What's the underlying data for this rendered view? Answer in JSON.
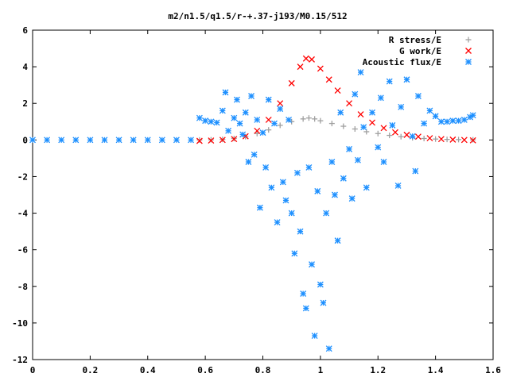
{
  "chart_data": {
    "type": "scatter",
    "title": "m2/n1.5/q1.5/r-+.37-j193/M0.15/512",
    "xlabel": "",
    "ylabel": "",
    "xlim": [
      0,
      1.6
    ],
    "ylim": [
      -12,
      6
    ],
    "x_ticks": [
      "0",
      "0.2",
      "0.4",
      "0.6",
      "0.8",
      "1",
      "1.2",
      "1.4",
      "1.6"
    ],
    "y_ticks": [
      "6",
      "4",
      "2",
      "0",
      "-2",
      "-4",
      "-6",
      "-8",
      "-10",
      "-12"
    ],
    "grid": false,
    "legend_position": "top-right",
    "series": [
      {
        "name": "R stress/E",
        "marker": "+",
        "color": "#a0a0a0",
        "points": [
          [
            0.58,
            0.0
          ],
          [
            0.62,
            0.01
          ],
          [
            0.66,
            0.03
          ],
          [
            0.7,
            0.08
          ],
          [
            0.74,
            0.18
          ],
          [
            0.78,
            0.35
          ],
          [
            0.82,
            0.55
          ],
          [
            0.86,
            0.8
          ],
          [
            0.9,
            1.0
          ],
          [
            0.94,
            1.15
          ],
          [
            0.96,
            1.2
          ],
          [
            0.98,
            1.15
          ],
          [
            1.0,
            1.05
          ],
          [
            1.04,
            0.9
          ],
          [
            1.08,
            0.75
          ],
          [
            1.12,
            0.6
          ],
          [
            1.16,
            0.45
          ],
          [
            1.2,
            0.35
          ],
          [
            1.24,
            0.25
          ],
          [
            1.28,
            0.18
          ],
          [
            1.32,
            0.12
          ],
          [
            1.36,
            0.08
          ],
          [
            1.4,
            0.05
          ],
          [
            1.44,
            0.03
          ],
          [
            1.48,
            0.02
          ],
          [
            1.53,
            0.01
          ]
        ]
      },
      {
        "name": "G work/E",
        "marker": "x",
        "color": "#ff0000",
        "points": [
          [
            0.58,
            -0.05
          ],
          [
            0.62,
            -0.03
          ],
          [
            0.66,
            0.0
          ],
          [
            0.7,
            0.05
          ],
          [
            0.74,
            0.2
          ],
          [
            0.78,
            0.5
          ],
          [
            0.82,
            1.1
          ],
          [
            0.86,
            2.0
          ],
          [
            0.9,
            3.1
          ],
          [
            0.93,
            4.0
          ],
          [
            0.95,
            4.45
          ],
          [
            0.97,
            4.4
          ],
          [
            1.0,
            3.9
          ],
          [
            1.03,
            3.3
          ],
          [
            1.06,
            2.7
          ],
          [
            1.1,
            2.0
          ],
          [
            1.14,
            1.4
          ],
          [
            1.18,
            0.95
          ],
          [
            1.22,
            0.65
          ],
          [
            1.26,
            0.42
          ],
          [
            1.3,
            0.28
          ],
          [
            1.34,
            0.18
          ],
          [
            1.38,
            0.1
          ],
          [
            1.42,
            0.05
          ],
          [
            1.46,
            0.02
          ],
          [
            1.5,
            0.0
          ],
          [
            1.53,
            -0.02
          ]
        ]
      },
      {
        "name": "Acoustic flux/E",
        "marker": "*",
        "color": "#1e90ff",
        "points": [
          [
            0.0,
            0.0
          ],
          [
            0.05,
            0.0
          ],
          [
            0.1,
            0.0
          ],
          [
            0.15,
            0.0
          ],
          [
            0.2,
            0.0
          ],
          [
            0.25,
            0.0
          ],
          [
            0.3,
            0.0
          ],
          [
            0.35,
            0.0
          ],
          [
            0.4,
            0.0
          ],
          [
            0.45,
            0.0
          ],
          [
            0.5,
            0.0
          ],
          [
            0.55,
            0.0
          ],
          [
            0.58,
            1.2
          ],
          [
            0.6,
            1.05
          ],
          [
            0.62,
            1.0
          ],
          [
            0.64,
            0.95
          ],
          [
            0.66,
            1.6
          ],
          [
            0.67,
            2.6
          ],
          [
            0.68,
            0.5
          ],
          [
            0.7,
            1.2
          ],
          [
            0.71,
            2.2
          ],
          [
            0.72,
            0.9
          ],
          [
            0.73,
            0.3
          ],
          [
            0.74,
            1.5
          ],
          [
            0.75,
            -1.2
          ],
          [
            0.76,
            2.4
          ],
          [
            0.77,
            -0.8
          ],
          [
            0.78,
            1.1
          ],
          [
            0.79,
            -3.7
          ],
          [
            0.8,
            0.4
          ],
          [
            0.81,
            -1.5
          ],
          [
            0.82,
            2.2
          ],
          [
            0.83,
            -2.6
          ],
          [
            0.84,
            0.9
          ],
          [
            0.85,
            -4.5
          ],
          [
            0.86,
            1.7
          ],
          [
            0.87,
            -2.3
          ],
          [
            0.88,
            -3.3
          ],
          [
            0.89,
            1.1
          ],
          [
            0.9,
            -4.0
          ],
          [
            0.91,
            -6.2
          ],
          [
            0.92,
            -1.8
          ],
          [
            0.93,
            -5.0
          ],
          [
            0.94,
            -8.4
          ],
          [
            0.95,
            -9.2
          ],
          [
            0.96,
            -1.5
          ],
          [
            0.97,
            -6.8
          ],
          [
            0.98,
            -10.7
          ],
          [
            0.99,
            -2.8
          ],
          [
            1.0,
            -7.9
          ],
          [
            1.01,
            -8.9
          ],
          [
            1.02,
            -4.0
          ],
          [
            1.03,
            -11.4
          ],
          [
            1.04,
            -1.2
          ],
          [
            1.05,
            -3.0
          ],
          [
            1.06,
            -5.5
          ],
          [
            1.07,
            1.5
          ],
          [
            1.08,
            -2.1
          ],
          [
            1.1,
            -0.5
          ],
          [
            1.11,
            -3.2
          ],
          [
            1.12,
            2.5
          ],
          [
            1.13,
            -1.1
          ],
          [
            1.14,
            3.7
          ],
          [
            1.15,
            0.7
          ],
          [
            1.16,
            -2.6
          ],
          [
            1.18,
            1.5
          ],
          [
            1.2,
            -0.4
          ],
          [
            1.21,
            2.3
          ],
          [
            1.22,
            -1.2
          ],
          [
            1.24,
            3.2
          ],
          [
            1.25,
            0.8
          ],
          [
            1.27,
            -2.5
          ],
          [
            1.28,
            1.8
          ],
          [
            1.3,
            3.3
          ],
          [
            1.32,
            0.2
          ],
          [
            1.33,
            -1.7
          ],
          [
            1.34,
            2.4
          ],
          [
            1.36,
            0.9
          ],
          [
            1.38,
            1.6
          ],
          [
            1.4,
            1.3
          ],
          [
            1.42,
            1.0
          ],
          [
            1.44,
            1.0
          ],
          [
            1.46,
            1.05
          ],
          [
            1.48,
            1.05
          ],
          [
            1.5,
            1.1
          ],
          [
            1.52,
            1.25
          ],
          [
            1.53,
            1.35
          ]
        ]
      }
    ]
  }
}
